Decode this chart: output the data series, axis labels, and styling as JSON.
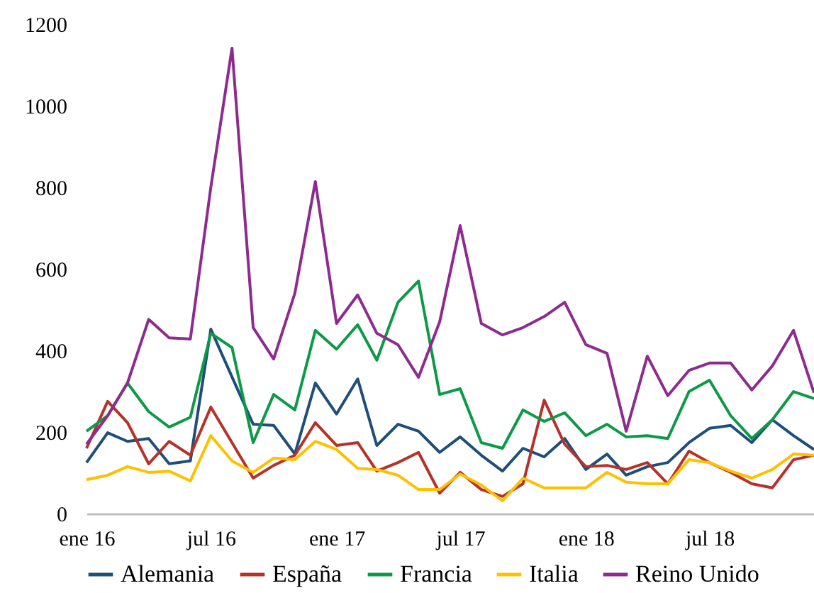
{
  "chart_data": {
    "type": "line",
    "x": [
      "2016-01",
      "2016-02",
      "2016-03",
      "2016-04",
      "2016-05",
      "2016-06",
      "2016-07",
      "2016-08",
      "2016-09",
      "2016-10",
      "2016-11",
      "2016-12",
      "2017-01",
      "2017-02",
      "2017-03",
      "2017-04",
      "2017-05",
      "2017-06",
      "2017-07",
      "2017-08",
      "2017-09",
      "2017-10",
      "2017-11",
      "2017-12",
      "2018-01",
      "2018-02",
      "2018-03",
      "2018-04",
      "2018-05",
      "2018-06",
      "2018-07",
      "2018-08",
      "2018-09",
      "2018-10",
      "2018-11",
      "2018-12"
    ],
    "series": [
      {
        "name": "Alemania",
        "color": "#1f4e79",
        "values": [
          125,
          198,
          177,
          184,
          122,
          129,
          452,
          335,
          219,
          216,
          146,
          320,
          244,
          330,
          167,
          219,
          202,
          150,
          188,
          143,
          104,
          160,
          139,
          184,
          108,
          146,
          94,
          115,
          125,
          174,
          209,
          216,
          174,
          230,
          191,
          157
        ]
      },
      {
        "name": "España",
        "color": "#b5322a",
        "values": [
          160,
          275,
          223,
          122,
          177,
          143,
          261,
          174,
          87,
          118,
          143,
          223,
          167,
          174,
          104,
          125,
          150,
          50,
          101,
          59,
          42,
          73,
          278,
          170,
          115,
          118,
          108,
          125,
          73,
          153,
          125,
          101,
          73,
          63,
          132,
          143
        ]
      },
      {
        "name": "Francia",
        "color": "#0d9a48",
        "values": [
          202,
          240,
          320,
          250,
          212,
          236,
          442,
          407,
          174,
          292,
          254,
          449,
          403,
          463,
          376,
          518,
          570,
          292,
          306,
          174,
          160,
          254,
          226,
          247,
          191,
          219,
          188,
          191,
          184,
          299,
          327,
          240,
          184,
          230,
          299,
          282
        ]
      },
      {
        "name": "Italia",
        "color": "#ffc000",
        "values": [
          83,
          94,
          115,
          101,
          104,
          80,
          191,
          129,
          101,
          136,
          132,
          177,
          157,
          111,
          108,
          94,
          59,
          59,
          97,
          70,
          31,
          87,
          63,
          63,
          63,
          101,
          77,
          73,
          73,
          132,
          125,
          104,
          87,
          108,
          146,
          143
        ]
      },
      {
        "name": "Reino Unido",
        "color": "#8e2b8f",
        "values": [
          170,
          240,
          320,
          476,
          431,
          428,
          800,
          1141,
          456,
          379,
          540,
          814,
          466,
          536,
          442,
          414,
          334,
          470,
          706,
          466,
          438,
          456,
          483,
          518,
          414,
          393,
          202,
          386,
          289,
          351,
          369,
          369,
          303,
          362,
          449,
          296
        ]
      }
    ],
    "xlim": [
      "2016-01",
      "2018-12"
    ],
    "xticks": [
      {
        "value": "2016-01",
        "label": "ene 16"
      },
      {
        "value": "2016-07",
        "label": "jul 16"
      },
      {
        "value": "2017-01",
        "label": "ene 17"
      },
      {
        "value": "2017-07",
        "label": "jul 17"
      },
      {
        "value": "2018-01",
        "label": "ene 18"
      },
      {
        "value": "2018-07",
        "label": "jul 18"
      }
    ],
    "ylim": [
      0,
      1200
    ],
    "yticks": [
      0,
      200,
      400,
      600,
      800,
      1000,
      1200
    ],
    "grid": false,
    "legend": "bottom"
  }
}
